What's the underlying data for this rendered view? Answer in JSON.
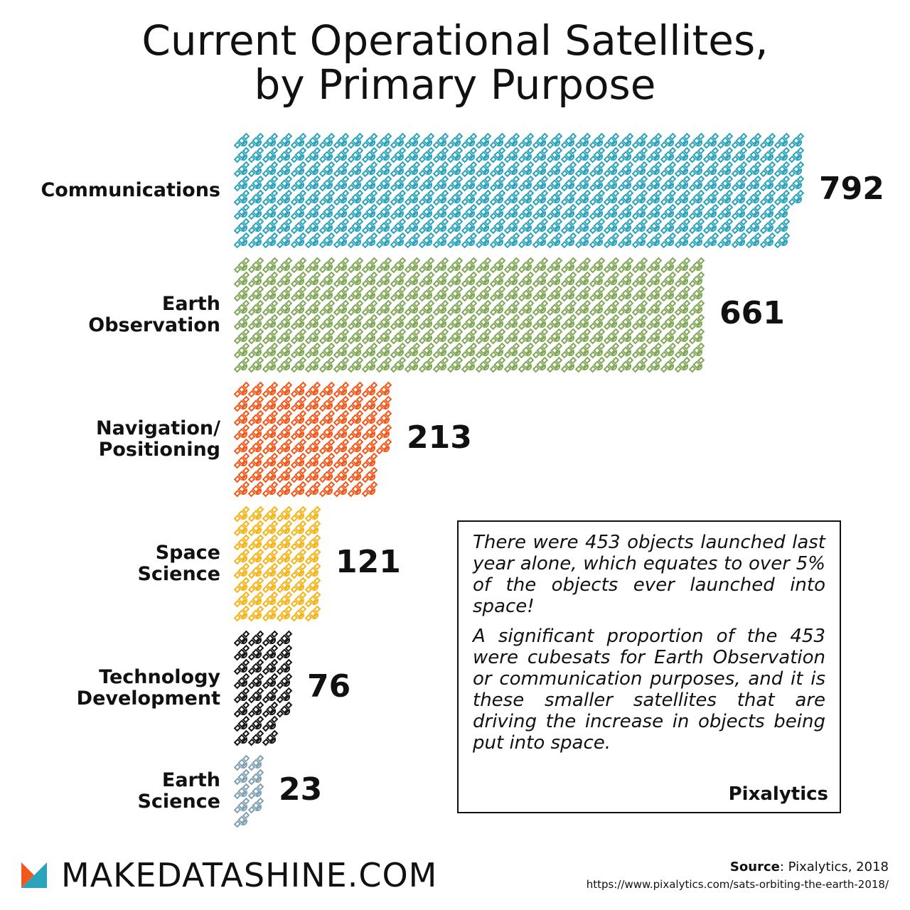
{
  "chart_data": {
    "type": "bar",
    "orientation": "horizontal",
    "style": "pictogram",
    "icon": "satellite-icon",
    "title": "Current Operational Satellites, by Primary Purpose",
    "title_lines": [
      "Current Operational Satellites,",
      "by Primary Purpose"
    ],
    "categories": [
      "Communications",
      "Earth Observation",
      "Navigation/ Positioning",
      "Space Science",
      "Technology Development",
      "Earth Science"
    ],
    "category_lines": [
      [
        "Communications"
      ],
      [
        "Earth",
        "Observation"
      ],
      [
        "Navigation/",
        "Positioning"
      ],
      [
        "Space",
        "Science"
      ],
      [
        "Technology",
        "Development"
      ],
      [
        "Earth",
        "Science"
      ]
    ],
    "values": [
      792,
      661,
      213,
      121,
      76,
      23
    ],
    "value_labels": [
      "792",
      "661",
      "213",
      "121",
      "76",
      "23"
    ],
    "colors": [
      "#2ba3ba",
      "#80a858",
      "#f2581b",
      "#f5b417",
      "#151515",
      "#7fa1b3"
    ]
  },
  "note": {
    "paragraph1": "There were 453 objects launched last year alone, which equates to over 5% of the objects ever launched into space!",
    "paragraph2": "A significant proportion of the 453 were cubesats for Earth Observation or communication purposes, and it is these smaller satellites that are driving the increase in objects being put into space.",
    "author": "Pixalytics"
  },
  "footer": {
    "brand": "MAKEDATASHINE.COM",
    "logo_colors": [
      "#f2581b",
      "#2ba3ba"
    ],
    "source_label": "Source",
    "source_text": ": Pixalytics, 2018",
    "source_url": "https://www.pixalytics.com/sats-orbiting-the-earth-2018/"
  }
}
